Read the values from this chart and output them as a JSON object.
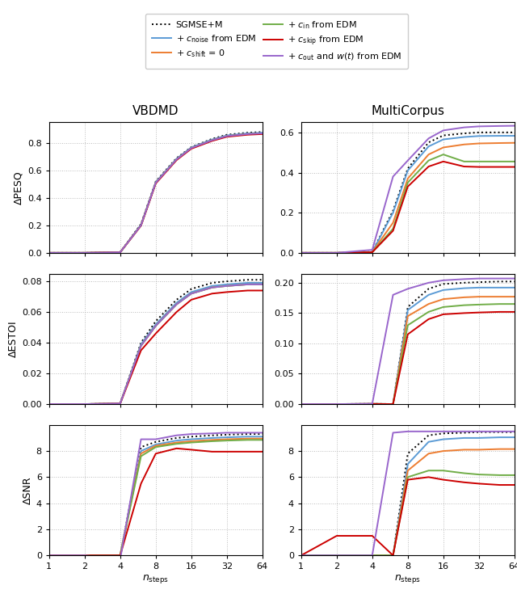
{
  "x_steps": [
    1,
    2,
    4,
    6,
    8,
    12,
    16,
    24,
    32,
    48,
    64
  ],
  "colors": {
    "sgmse": "black",
    "cnoise": "#5b9bd5",
    "cshift": "#ed7d31",
    "cin": "#70ad47",
    "cskip": "#cc0000",
    "cout": "#9966cc"
  },
  "col_titles": [
    "VBDMD",
    "MultiCorpus"
  ],
  "row_labels": [
    "ΔPESQ",
    "ΔESTOI",
    "ΔSNR"
  ],
  "VBDMD_PESQ": {
    "sgmse": [
      0.0,
      0.0,
      0.005,
      0.21,
      0.52,
      0.69,
      0.77,
      0.83,
      0.86,
      0.875,
      0.88
    ],
    "cnoise": [
      0.0,
      0.0,
      0.004,
      0.205,
      0.515,
      0.685,
      0.768,
      0.825,
      0.855,
      0.87,
      0.875
    ],
    "cshift": [
      0.0,
      0.0,
      0.004,
      0.2,
      0.51,
      0.68,
      0.763,
      0.82,
      0.85,
      0.865,
      0.87
    ],
    "cin": [
      0.0,
      0.0,
      0.004,
      0.2,
      0.51,
      0.68,
      0.763,
      0.82,
      0.85,
      0.865,
      0.87
    ],
    "cskip": [
      0.0,
      0.0,
      0.004,
      0.198,
      0.505,
      0.675,
      0.758,
      0.815,
      0.845,
      0.86,
      0.865
    ],
    "cout": [
      0.0,
      0.0,
      0.004,
      0.2,
      0.51,
      0.68,
      0.763,
      0.82,
      0.85,
      0.865,
      0.87
    ]
  },
  "MultiCorpus_PESQ": {
    "sgmse": [
      0.0,
      0.0,
      0.005,
      0.21,
      0.42,
      0.55,
      0.585,
      0.595,
      0.6,
      0.6,
      0.6
    ],
    "cnoise": [
      0.0,
      0.0,
      0.004,
      0.2,
      0.41,
      0.53,
      0.565,
      0.577,
      0.582,
      0.583,
      0.583
    ],
    "cshift": [
      0.0,
      0.0,
      0.004,
      0.15,
      0.37,
      0.49,
      0.525,
      0.54,
      0.545,
      0.547,
      0.548
    ],
    "cin": [
      0.0,
      0.0,
      0.003,
      0.12,
      0.35,
      0.46,
      0.49,
      0.455,
      0.455,
      0.455,
      0.455
    ],
    "cskip": [
      0.0,
      0.0,
      0.003,
      0.11,
      0.33,
      0.43,
      0.455,
      0.43,
      0.428,
      0.428,
      0.428
    ],
    "cout": [
      0.0,
      0.0,
      0.015,
      0.38,
      0.46,
      0.57,
      0.61,
      0.625,
      0.63,
      0.632,
      0.633
    ]
  },
  "VBDMD_ESTOI": {
    "sgmse": [
      0.0,
      0.0,
      0.0005,
      0.04,
      0.054,
      0.068,
      0.075,
      0.079,
      0.08,
      0.081,
      0.081
    ],
    "cnoise": [
      0.0,
      0.0,
      0.0004,
      0.039,
      0.052,
      0.066,
      0.073,
      0.077,
      0.078,
      0.079,
      0.079
    ],
    "cshift": [
      0.0,
      0.0,
      0.0004,
      0.038,
      0.051,
      0.065,
      0.072,
      0.076,
      0.077,
      0.078,
      0.078
    ],
    "cin": [
      0.0,
      0.0,
      0.0004,
      0.038,
      0.051,
      0.065,
      0.072,
      0.076,
      0.077,
      0.078,
      0.078
    ],
    "cskip": [
      0.0,
      0.0,
      0.0004,
      0.035,
      0.046,
      0.06,
      0.068,
      0.072,
      0.073,
      0.074,
      0.074
    ],
    "cout": [
      0.0,
      0.0,
      0.0004,
      0.038,
      0.051,
      0.065,
      0.072,
      0.076,
      0.077,
      0.078,
      0.078
    ]
  },
  "MultiCorpus_ESTOI": {
    "sgmse": [
      0.0,
      0.0,
      0.0005,
      0.0,
      0.16,
      0.19,
      0.198,
      0.2,
      0.201,
      0.202,
      0.202
    ],
    "cnoise": [
      0.0,
      0.0,
      0.0004,
      0.0,
      0.155,
      0.18,
      0.188,
      0.191,
      0.192,
      0.192,
      0.192
    ],
    "cshift": [
      0.0,
      0.0,
      0.0004,
      0.0,
      0.145,
      0.165,
      0.173,
      0.176,
      0.177,
      0.177,
      0.177
    ],
    "cin": [
      0.0,
      0.0,
      0.0003,
      0.0,
      0.13,
      0.152,
      0.16,
      0.163,
      0.164,
      0.165,
      0.165
    ],
    "cskip": [
      0.0,
      0.0,
      0.0003,
      0.0,
      0.115,
      0.14,
      0.148,
      0.15,
      0.151,
      0.152,
      0.152
    ],
    "cout": [
      0.0,
      0.0,
      0.0005,
      0.18,
      0.19,
      0.2,
      0.204,
      0.206,
      0.207,
      0.207,
      0.207
    ]
  },
  "VBDMD_SNR": {
    "sgmse": [
      0.0,
      0.0,
      0.0,
      8.3,
      8.7,
      9.0,
      9.1,
      9.2,
      9.25,
      9.3,
      9.3
    ],
    "cnoise": [
      0.0,
      0.0,
      0.0,
      8.0,
      8.5,
      8.8,
      8.9,
      9.0,
      9.05,
      9.1,
      9.1
    ],
    "cshift": [
      0.0,
      0.0,
      0.0,
      7.8,
      8.4,
      8.65,
      8.75,
      8.85,
      8.9,
      8.95,
      8.95
    ],
    "cin": [
      0.0,
      0.0,
      0.0,
      7.6,
      8.3,
      8.55,
      8.65,
      8.75,
      8.8,
      8.85,
      8.85
    ],
    "cskip": [
      0.0,
      0.0,
      0.0,
      5.5,
      7.8,
      8.2,
      8.1,
      7.95,
      7.95,
      7.95,
      7.95
    ],
    "cout": [
      0.0,
      0.0,
      -0.3,
      8.9,
      8.9,
      9.2,
      9.3,
      9.35,
      9.4,
      9.4,
      9.4
    ]
  },
  "MultiCorpus_SNR": {
    "sgmse": [
      0.0,
      0.0,
      0.0,
      0.0,
      7.8,
      9.2,
      9.35,
      9.4,
      9.45,
      9.45,
      9.45
    ],
    "cnoise": [
      0.0,
      0.0,
      0.0,
      0.0,
      7.0,
      8.7,
      8.9,
      9.0,
      9.0,
      9.05,
      9.05
    ],
    "cshift": [
      0.0,
      0.0,
      0.0,
      0.0,
      6.5,
      7.8,
      8.0,
      8.1,
      8.1,
      8.15,
      8.15
    ],
    "cin": [
      0.0,
      0.0,
      0.0,
      0.0,
      6.0,
      6.5,
      6.5,
      6.3,
      6.2,
      6.15,
      6.15
    ],
    "cskip": [
      0.0,
      1.5,
      1.5,
      0.0,
      5.8,
      6.0,
      5.8,
      5.6,
      5.5,
      5.4,
      5.4
    ],
    "cout": [
      0.0,
      0.0,
      0.0,
      9.4,
      9.5,
      9.5,
      9.5,
      9.5,
      9.5,
      9.5,
      9.5
    ]
  }
}
